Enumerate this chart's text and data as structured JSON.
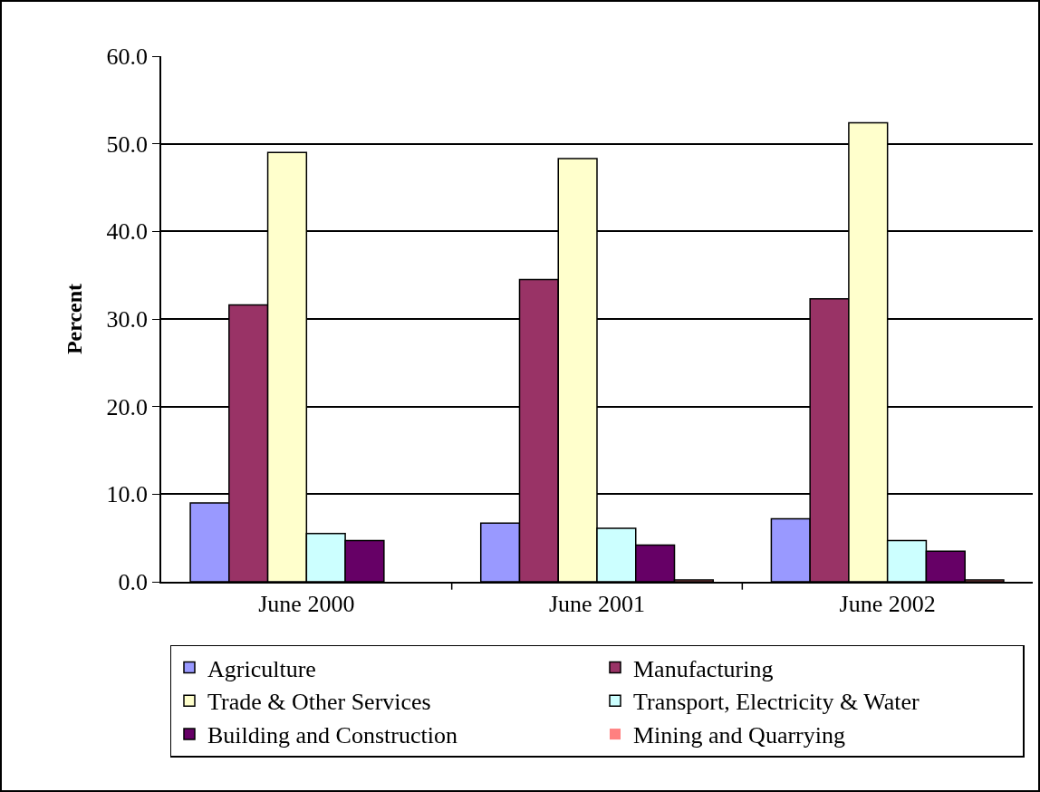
{
  "chart_data": {
    "type": "bar",
    "ylabel": "Percent",
    "categories": [
      "June 2000",
      "June 2001",
      "June 2002"
    ],
    "series": [
      {
        "name": "Agriculture",
        "color": "#9999ff",
        "values": [
          9.0,
          6.7,
          7.2
        ]
      },
      {
        "name": "Manufacturing",
        "color": "#993366",
        "values": [
          31.6,
          34.5,
          32.3
        ]
      },
      {
        "name": "Trade & Other Services",
        "color": "#ffffcc",
        "values": [
          49.0,
          48.3,
          52.4
        ]
      },
      {
        "name": "Transport, Electricity & Water",
        "color": "#ccffff",
        "values": [
          5.5,
          6.1,
          4.7
        ]
      },
      {
        "name": "Building and Construction",
        "color": "#660066",
        "values": [
          4.7,
          4.2,
          3.5
        ]
      },
      {
        "name": "Mining and Quarrying",
        "color": "#ff8080",
        "values": [
          0,
          0.2,
          0.2
        ]
      }
    ],
    "ylim": [
      0,
      60
    ],
    "yticks": [
      {
        "value": 0,
        "label": "0.0"
      },
      {
        "value": 10,
        "label": "10.0"
      },
      {
        "value": 20,
        "label": "20.0"
      },
      {
        "value": 30,
        "label": "30.0"
      },
      {
        "value": 40,
        "label": "40.0"
      },
      {
        "value": 50,
        "label": "50.0"
      },
      {
        "value": 60,
        "label": "60.0"
      }
    ],
    "grid": "y",
    "legend": "bottom"
  }
}
